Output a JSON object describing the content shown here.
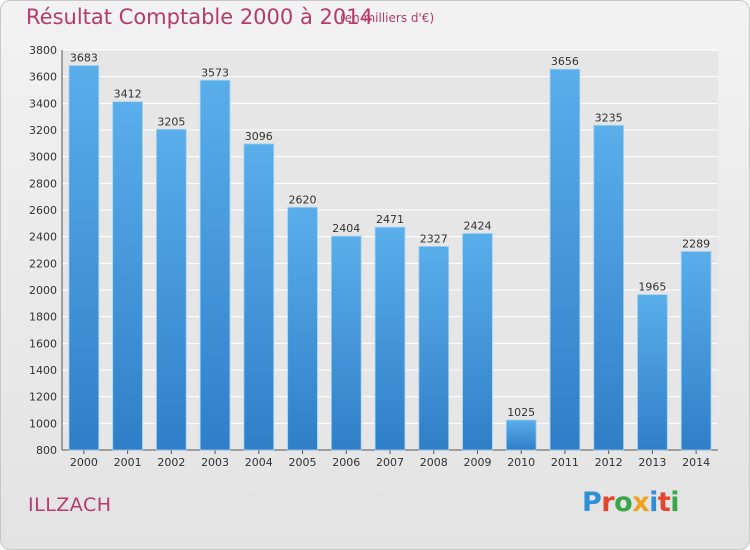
{
  "header": {
    "title": "Résultat Comptable 2000 à 2014",
    "subtitle": "(en milliers d'€)"
  },
  "footer": {
    "commune": "ILLZACH",
    "logo_text": "Proxiti"
  },
  "colors": {
    "bar": "#4a9ee2",
    "bar_dark": "#2d7dc8",
    "title": "#b53b6c",
    "grid": "#ffffff",
    "background": "#e8e8e8"
  },
  "chart_data": {
    "type": "bar",
    "title": "Résultat Comptable 2000 à 2014",
    "subtitle": "(en milliers d'€)",
    "categories": [
      "2000",
      "2001",
      "2002",
      "2003",
      "2004",
      "2005",
      "2006",
      "2007",
      "2008",
      "2009",
      "2010",
      "2011",
      "2012",
      "2013",
      "2014"
    ],
    "values": [
      3683,
      3412,
      3205,
      3573,
      3096,
      2620,
      2404,
      2471,
      2327,
      2424,
      1025,
      3656,
      3235,
      1965,
      2289
    ],
    "ylim": [
      800,
      3800
    ],
    "yticks": [
      800,
      1000,
      1200,
      1400,
      1600,
      1800,
      2000,
      2200,
      2400,
      2600,
      2800,
      3000,
      3200,
      3400,
      3600,
      3800
    ],
    "grid": true,
    "xlabel": "",
    "ylabel": ""
  }
}
